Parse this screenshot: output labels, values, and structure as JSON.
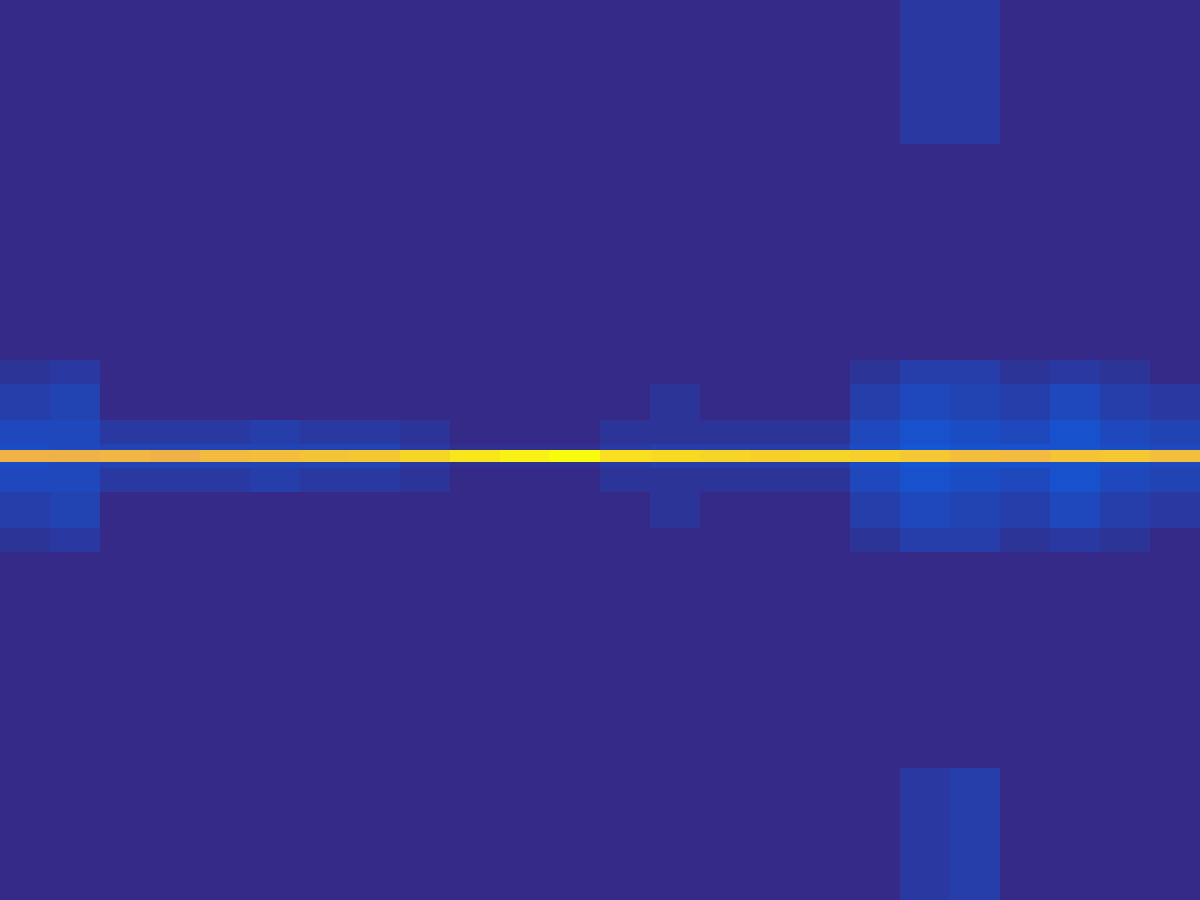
{
  "chart_data": {
    "type": "heatmap",
    "tick_labels": false,
    "grid": false,
    "xlim": [
      0,
      1200
    ],
    "ylim": [
      900,
      0
    ],
    "zlim": [
      0,
      1
    ],
    "x_edges": [
      0,
      50,
      100,
      150,
      200,
      250,
      300,
      350,
      400,
      450,
      500,
      550,
      600,
      650,
      700,
      750,
      800,
      850,
      900,
      950,
      1000,
      1050,
      1100,
      1150,
      1200
    ],
    "y_edges": [
      0,
      144,
      360,
      384,
      420,
      444,
      450,
      462,
      468,
      492,
      528,
      552,
      768,
      900
    ],
    "cells": [
      [
        0,
        0,
        0,
        0,
        0,
        0,
        0,
        0,
        0,
        0,
        0,
        0,
        0,
        0,
        0,
        0,
        0,
        0,
        0.03,
        0.03,
        0,
        0,
        0,
        0
      ],
      [
        0,
        0,
        0,
        0,
        0,
        0,
        0,
        0,
        0,
        0,
        0,
        0,
        0,
        0,
        0,
        0,
        0,
        0,
        0,
        0,
        0,
        0,
        0,
        0
      ],
      [
        0.02,
        0.03,
        0,
        0,
        0,
        0,
        0,
        0,
        0,
        0,
        0,
        0,
        0,
        0,
        0,
        0,
        0,
        0.02,
        0.04,
        0.04,
        0.02,
        0.03,
        0.02,
        0
      ],
      [
        0.04,
        0.05,
        0,
        0,
        0,
        0,
        0,
        0,
        0,
        0,
        0,
        0,
        0,
        0.02,
        0,
        0,
        0,
        0.04,
        0.06,
        0.05,
        0.04,
        0.06,
        0.04,
        0.03
      ],
      [
        0.06,
        0.06,
        0.03,
        0.03,
        0.03,
        0.04,
        0.03,
        0.03,
        0.02,
        0,
        0,
        0,
        0.02,
        0.02,
        0.02,
        0.02,
        0.02,
        0.06,
        0.08,
        0.07,
        0.06,
        0.08,
        0.06,
        0.05
      ],
      [
        0.07,
        0.06,
        0.05,
        0.05,
        0.05,
        0.05,
        0.05,
        0.05,
        0.03,
        0.01,
        0.01,
        0.01,
        0.03,
        0.04,
        0.04,
        0.04,
        0.04,
        0.07,
        0.09,
        0.08,
        0.08,
        0.08,
        0.07,
        0.06
      ],
      [
        0.85,
        0.84,
        0.86,
        0.85,
        0.87,
        0.88,
        0.89,
        0.9,
        0.93,
        0.96,
        0.98,
        1.0,
        0.95,
        0.94,
        0.93,
        0.92,
        0.93,
        0.92,
        0.9,
        0.88,
        0.87,
        0.89,
        0.9,
        0.88
      ],
      [
        0.07,
        0.06,
        0.05,
        0.05,
        0.05,
        0.05,
        0.05,
        0.05,
        0.03,
        0.01,
        0.01,
        0.01,
        0.03,
        0.04,
        0.04,
        0.04,
        0.04,
        0.07,
        0.09,
        0.08,
        0.08,
        0.08,
        0.07,
        0.06
      ],
      [
        0.06,
        0.06,
        0.03,
        0.03,
        0.03,
        0.04,
        0.03,
        0.03,
        0.02,
        0,
        0,
        0,
        0.02,
        0.02,
        0.02,
        0.02,
        0.02,
        0.06,
        0.08,
        0.07,
        0.06,
        0.08,
        0.06,
        0.05
      ],
      [
        0.04,
        0.05,
        0,
        0,
        0,
        0,
        0,
        0,
        0,
        0,
        0,
        0,
        0,
        0.02,
        0,
        0,
        0,
        0.04,
        0.06,
        0.05,
        0.04,
        0.06,
        0.04,
        0.03
      ],
      [
        0.02,
        0.03,
        0,
        0,
        0,
        0,
        0,
        0,
        0,
        0,
        0,
        0,
        0,
        0,
        0,
        0,
        0,
        0.02,
        0.04,
        0.04,
        0.02,
        0.03,
        0.02,
        0
      ],
      [
        0,
        0,
        0,
        0,
        0,
        0,
        0,
        0,
        0,
        0,
        0,
        0,
        0,
        0,
        0,
        0,
        0,
        0,
        0,
        0,
        0,
        0,
        0,
        0
      ],
      [
        0,
        0,
        0,
        0,
        0,
        0,
        0,
        0,
        0,
        0,
        0,
        0,
        0,
        0,
        0,
        0,
        0,
        0,
        0.03,
        0.04,
        0,
        0,
        0,
        0
      ]
    ]
  }
}
